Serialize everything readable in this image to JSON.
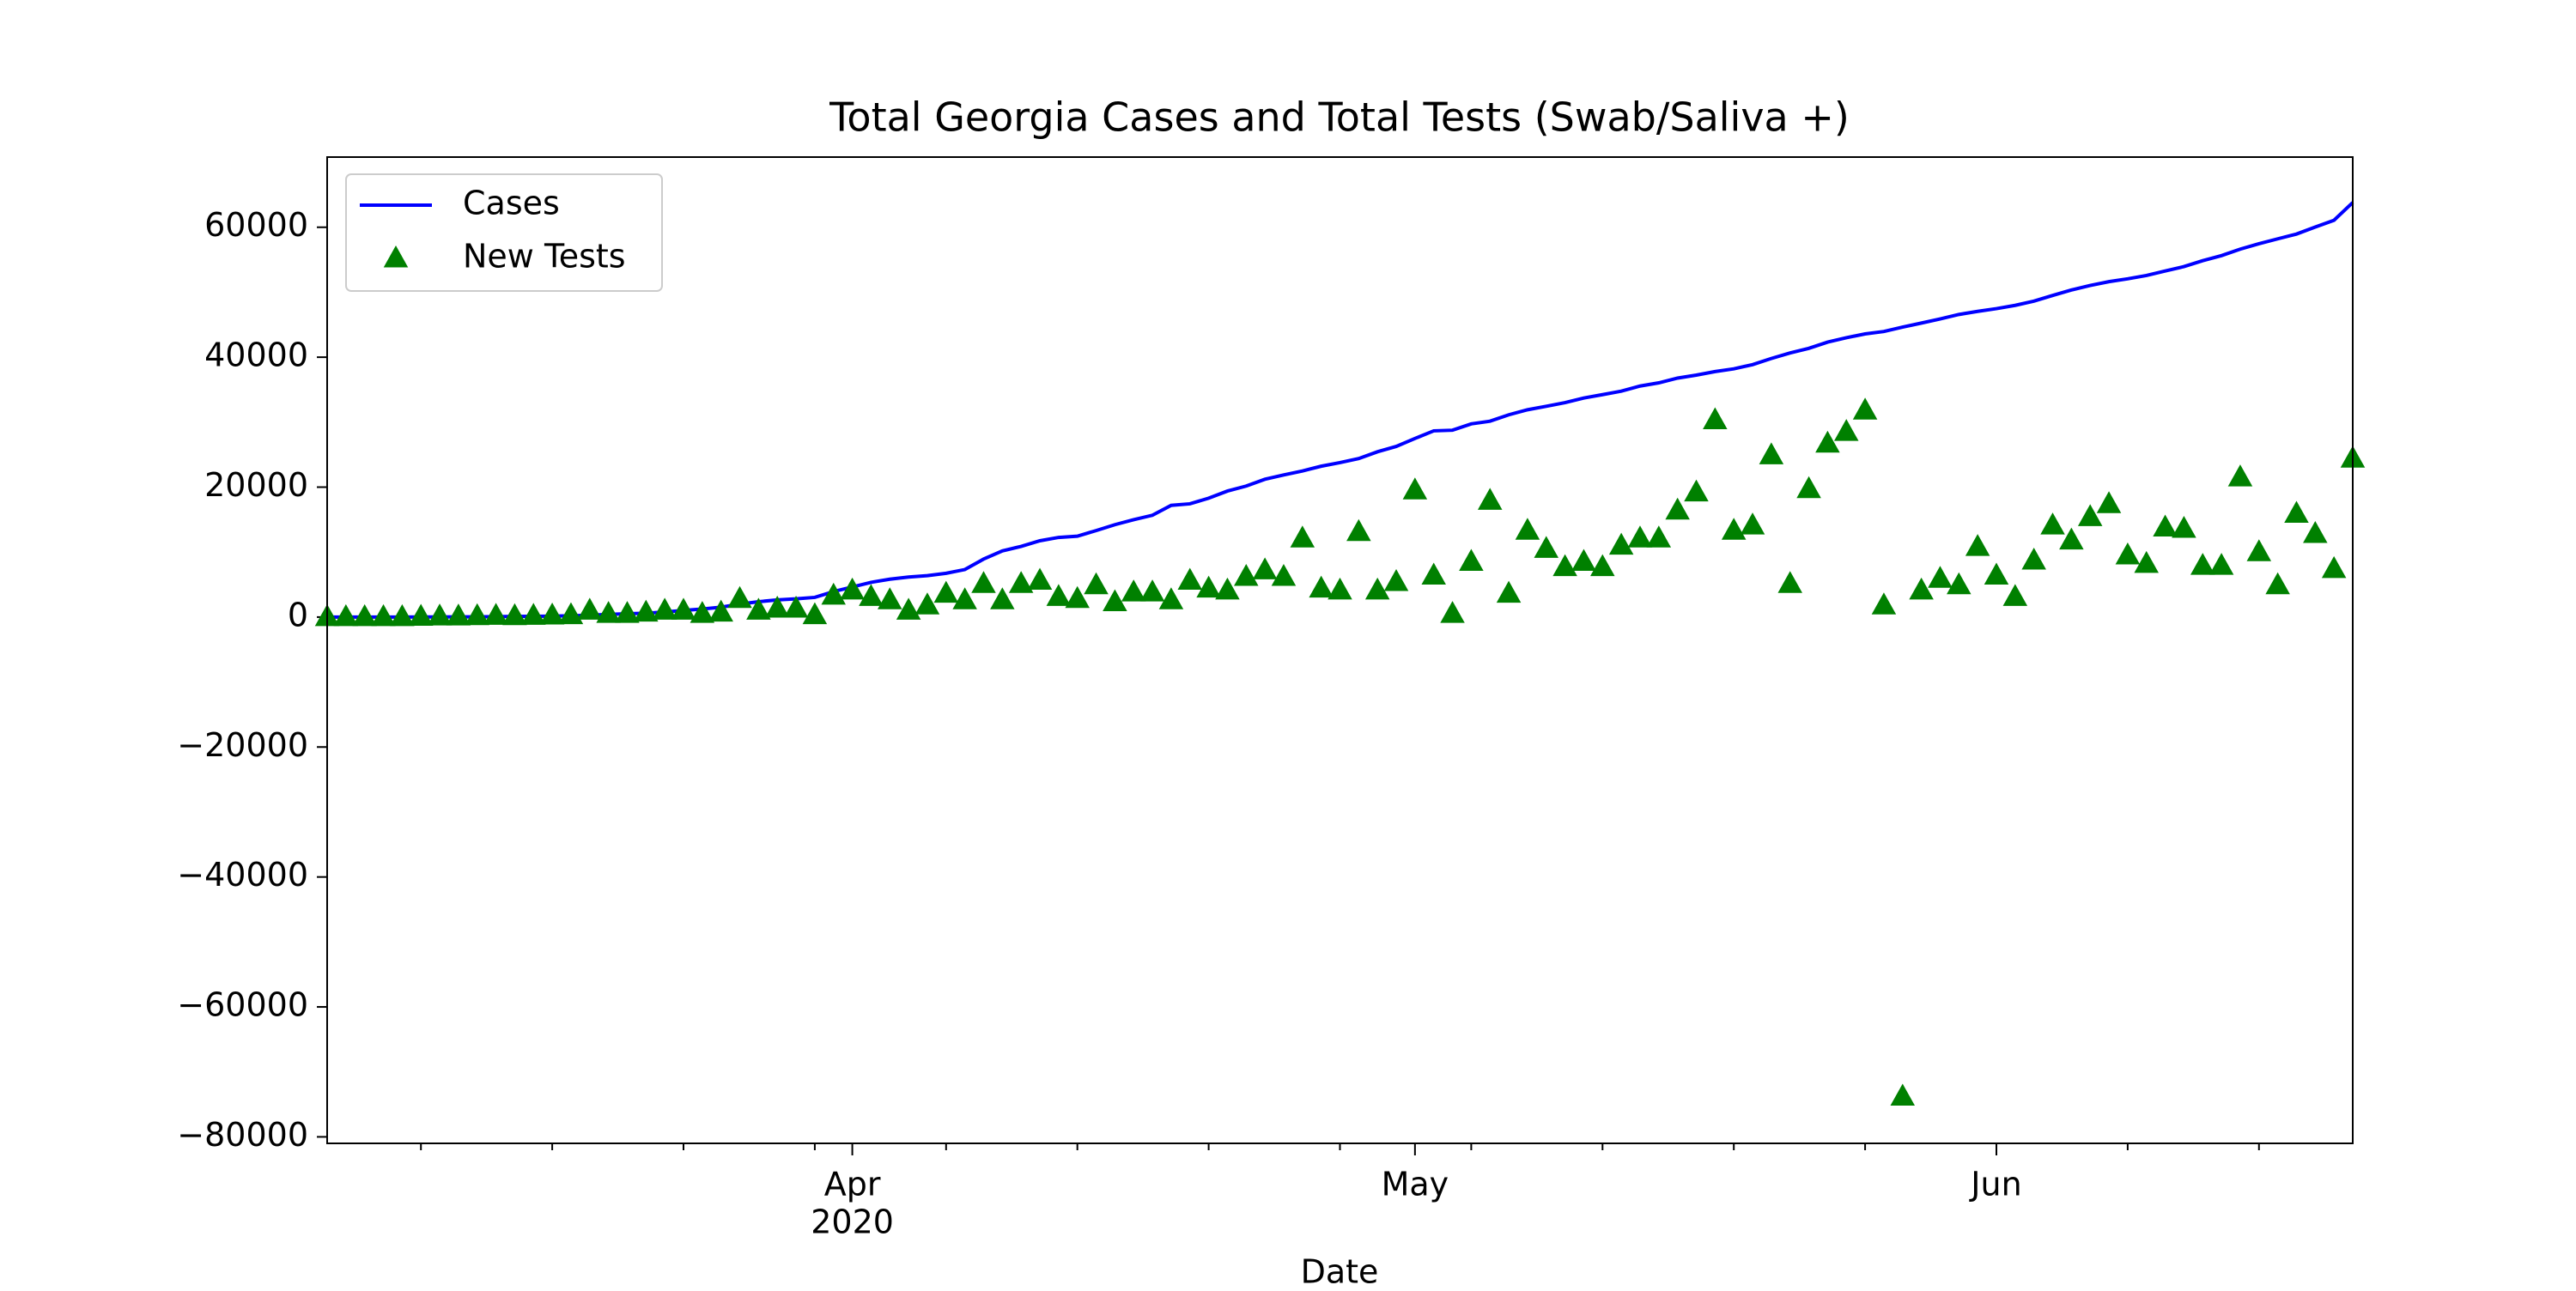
{
  "chart_data": {
    "type": "line+scatter",
    "title": "Total Georgia Cases and Total Tests (Swab/Saliva +)",
    "xlabel": "Date",
    "legend": "upper left",
    "x": [
      "2020-03-04",
      "2020-03-05",
      "2020-03-06",
      "2020-03-07",
      "2020-03-08",
      "2020-03-09",
      "2020-03-10",
      "2020-03-11",
      "2020-03-12",
      "2020-03-13",
      "2020-03-14",
      "2020-03-15",
      "2020-03-16",
      "2020-03-17",
      "2020-03-18",
      "2020-03-19",
      "2020-03-20",
      "2020-03-21",
      "2020-03-22",
      "2020-03-23",
      "2020-03-24",
      "2020-03-25",
      "2020-03-26",
      "2020-03-27",
      "2020-03-28",
      "2020-03-29",
      "2020-03-30",
      "2020-03-31",
      "2020-04-01",
      "2020-04-02",
      "2020-04-03",
      "2020-04-04",
      "2020-04-05",
      "2020-04-06",
      "2020-04-07",
      "2020-04-08",
      "2020-04-09",
      "2020-04-10",
      "2020-04-11",
      "2020-04-12",
      "2020-04-13",
      "2020-04-14",
      "2020-04-15",
      "2020-04-16",
      "2020-04-17",
      "2020-04-18",
      "2020-04-19",
      "2020-04-20",
      "2020-04-21",
      "2020-04-22",
      "2020-04-23",
      "2020-04-24",
      "2020-04-25",
      "2020-04-26",
      "2020-04-27",
      "2020-04-28",
      "2020-04-29",
      "2020-04-30",
      "2020-05-01",
      "2020-05-02",
      "2020-05-03",
      "2020-05-04",
      "2020-05-05",
      "2020-05-06",
      "2020-05-07",
      "2020-05-08",
      "2020-05-09",
      "2020-05-10",
      "2020-05-11",
      "2020-05-12",
      "2020-05-13",
      "2020-05-14",
      "2020-05-15",
      "2020-05-16",
      "2020-05-17",
      "2020-05-18",
      "2020-05-19",
      "2020-05-20",
      "2020-05-21",
      "2020-05-22",
      "2020-05-23",
      "2020-05-24",
      "2020-05-25",
      "2020-05-26",
      "2020-05-27",
      "2020-05-28",
      "2020-05-29",
      "2020-05-30",
      "2020-05-31",
      "2020-06-01",
      "2020-06-02",
      "2020-06-03",
      "2020-06-04",
      "2020-06-05",
      "2020-06-06",
      "2020-06-07",
      "2020-06-08",
      "2020-06-09",
      "2020-06-10",
      "2020-06-11",
      "2020-06-12",
      "2020-06-13",
      "2020-06-14",
      "2020-06-15",
      "2020-06-16",
      "2020-06-17",
      "2020-06-18",
      "2020-06-19",
      "2020-06-20"
    ],
    "series": [
      {
        "name": "Cases",
        "kind": "line",
        "color": "#0000ff",
        "values": [
          2,
          2,
          2,
          2,
          5,
          17,
          22,
          31,
          42,
          66,
          99,
          121,
          146,
          197,
          287,
          420,
          507,
          600,
          772,
          1026,
          1247,
          1525,
          2000,
          2366,
          2651,
          2809,
          3032,
          3929,
          4638,
          5348,
          5831,
          6160,
          6383,
          6742,
          7314,
          8926,
          10189,
          10885,
          11746,
          12261,
          12452,
          13315,
          14223,
          14987,
          15669,
          17194,
          17432,
          18301,
          19398,
          20166,
          21214,
          21883,
          22491,
          23222,
          23773,
          24401,
          25443,
          26264,
          27492,
          28665,
          28762,
          29737,
          30149,
          31132,
          31909,
          32447,
          33005,
          33713,
          34239,
          34770,
          35562,
          36052,
          36782,
          37245,
          37791,
          38207,
          38855,
          39801,
          40649,
          41364,
          42323,
          42998,
          43586,
          43957,
          44630,
          45251,
          45886,
          46575,
          47051,
          47474,
          47979,
          48630,
          49505,
          50346,
          51041,
          51625,
          52066,
          52577,
          53267,
          53946,
          54857,
          55634,
          56629,
          57462,
          58216,
          58952,
          60029,
          61079,
          63809
        ]
      },
      {
        "name": "New Tests",
        "kind": "scatter",
        "color": "#008000",
        "values": [
          0,
          0,
          0,
          0,
          0,
          50,
          100,
          100,
          150,
          200,
          150,
          200,
          250,
          300,
          1000,
          500,
          500,
          700,
          1000,
          1000,
          500,
          700,
          2800,
          1000,
          1300,
          1300,
          300,
          3300,
          4100,
          3100,
          2600,
          1000,
          1800,
          3600,
          2600,
          5100,
          2600,
          5100,
          5600,
          3100,
          2800,
          4900,
          2300,
          3800,
          3800,
          2600,
          5600,
          4400,
          4100,
          6200,
          7200,
          6200,
          12100,
          4400,
          4100,
          13100,
          4100,
          5400,
          19500,
          6400,
          500,
          8500,
          17900,
          3600,
          13300,
          10500,
          7700,
          8500,
          7700,
          11000,
          12100,
          12100,
          16400,
          19200,
          30300,
          13300,
          14100,
          24900,
          5100,
          19700,
          26700,
          28500,
          31800,
          1800,
          -73800,
          4100,
          5900,
          4900,
          10800,
          6400,
          3100,
          8700,
          14100,
          11800,
          15400,
          17400,
          9500,
          8200,
          13800,
          13600,
          7900,
          7900,
          21500,
          10000,
          4900,
          15900,
          12800,
          7400,
          24400
        ]
      }
    ],
    "xlim": [
      "2020-03-04",
      "2020-06-20"
    ],
    "xticks": [
      {
        "value": "2020-04-01",
        "label": [
          "Apr",
          "2020"
        ]
      },
      {
        "value": "2020-05-01",
        "label": [
          "May"
        ]
      },
      {
        "value": "2020-06-01",
        "label": [
          "Jun"
        ]
      }
    ],
    "xminorticks": [
      "2020-03-09",
      "2020-03-16",
      "2020-03-23",
      "2020-03-30",
      "2020-04-06",
      "2020-04-13",
      "2020-04-20",
      "2020-04-27",
      "2020-05-04",
      "2020-05-11",
      "2020-05-18",
      "2020-05-25",
      "2020-06-08",
      "2020-06-15"
    ],
    "ylim": [
      -81000,
      70800
    ],
    "yticks": [
      {
        "value": -80000,
        "label": "−80000"
      },
      {
        "value": -60000,
        "label": "−60000"
      },
      {
        "value": -40000,
        "label": "−40000"
      },
      {
        "value": -20000,
        "label": "−20000"
      },
      0,
      20000,
      40000,
      60000
    ]
  }
}
